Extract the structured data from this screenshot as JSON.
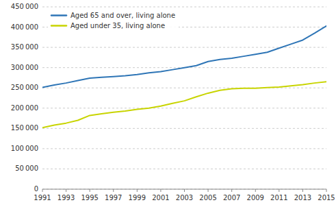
{
  "chart_data": {
    "type": "line",
    "x": [
      1991,
      1992,
      1993,
      1994,
      1995,
      1996,
      1997,
      1998,
      1999,
      2000,
      2001,
      2002,
      2003,
      2004,
      2005,
      2006,
      2007,
      2008,
      2009,
      2010,
      2011,
      2012,
      2013,
      2014,
      2015
    ],
    "series": [
      {
        "name": "Aged 65 and over, living alone",
        "color": "#2E75B6",
        "values": [
          251000,
          257000,
          262000,
          268000,
          274000,
          276000,
          278000,
          280000,
          283000,
          287000,
          290000,
          295000,
          300000,
          305000,
          315000,
          320000,
          323000,
          328000,
          333000,
          338000,
          348000,
          358000,
          368000,
          385000,
          403000
        ]
      },
      {
        "name": "Aged under 35, living alone",
        "color": "#C8D400",
        "values": [
          152000,
          158000,
          163000,
          170000,
          182000,
          186000,
          190000,
          193000,
          197000,
          200000,
          205000,
          212000,
          218000,
          228000,
          237000,
          244000,
          248000,
          249000,
          249000,
          251000,
          252000,
          255000,
          258000,
          262000,
          265000
        ]
      }
    ],
    "xlim": [
      1991,
      2015
    ],
    "xticks": [
      1991,
      1993,
      1995,
      1997,
      1999,
      2001,
      2003,
      2005,
      2007,
      2009,
      2011,
      2013,
      2015
    ],
    "ylim": [
      0,
      450000
    ],
    "yticks": [
      0,
      {
        "value": 50000,
        "label": "50 000"
      },
      {
        "value": 100000,
        "label": "100 000"
      },
      {
        "value": 150000,
        "label": "150 000"
      },
      {
        "value": 200000,
        "label": "200 000"
      },
      {
        "value": 250000,
        "label": "250 000"
      },
      {
        "value": 300000,
        "label": "300 000"
      },
      {
        "value": 350000,
        "label": "350 000"
      },
      {
        "value": 400000,
        "label": "400 000"
      },
      {
        "value": 450000,
        "label": "450 000"
      }
    ],
    "grid": true,
    "legend": "upper left"
  }
}
